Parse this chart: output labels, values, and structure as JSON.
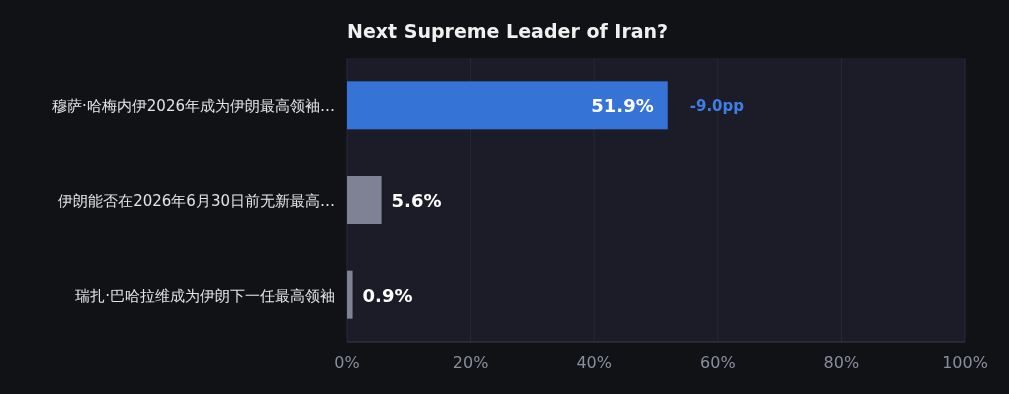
{
  "chart_data": {
    "type": "bar",
    "orientation": "horizontal",
    "title": "Next Supreme Leader of Iran?",
    "categories": [
      "穆萨·哈梅内伊2026年成为伊朗最高领袖…",
      "伊朗能否在2026年6月30日前无新最高…",
      "瑞扎·巴哈拉维成为伊朗下一任最高领袖"
    ],
    "values": [
      51.9,
      5.6,
      0.9
    ],
    "colors": [
      "#3574d6",
      "#7f8294",
      "#7f8294"
    ],
    "value_labels": [
      "51.9%",
      "5.6%",
      "0.9%"
    ],
    "annotations": [
      {
        "text": "-9.0pp",
        "x": 51.9,
        "y": "穆萨·哈梅内伊2026年成为伊朗最高领袖…"
      }
    ],
    "xlim": [
      0,
      100
    ],
    "xticks": [
      {
        "value": 0,
        "label": "0%"
      },
      {
        "value": 20,
        "label": "20%"
      },
      {
        "value": 40,
        "label": "40%"
      },
      {
        "value": 60,
        "label": "60%"
      },
      {
        "value": 80,
        "label": "80%"
      },
      {
        "value": 100,
        "label": "100%"
      }
    ],
    "grid": "x"
  }
}
